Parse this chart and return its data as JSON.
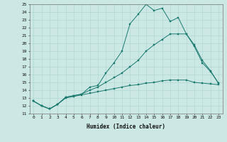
{
  "xlabel": "Humidex (Indice chaleur)",
  "background_color": "#cce8e5",
  "grid_color": "#aad4d0",
  "line_color": "#1a7a6e",
  "xlim": [
    -0.5,
    23.5
  ],
  "ylim": [
    11,
    25
  ],
  "xticks": [
    0,
    1,
    2,
    3,
    4,
    5,
    6,
    7,
    8,
    9,
    10,
    11,
    12,
    13,
    14,
    15,
    16,
    17,
    18,
    19,
    20,
    21,
    22,
    23
  ],
  "yticks": [
    11,
    12,
    13,
    14,
    15,
    16,
    17,
    18,
    19,
    20,
    21,
    22,
    23,
    24,
    25
  ],
  "line1_x": [
    0,
    1,
    2,
    3,
    4,
    5,
    6,
    7,
    8,
    9,
    10,
    11,
    12,
    13,
    14,
    15,
    16,
    17,
    18,
    19,
    20,
    21,
    22,
    23
  ],
  "line1_y": [
    12.6,
    12.0,
    11.6,
    12.2,
    13.1,
    13.3,
    13.5,
    14.4,
    14.6,
    16.2,
    17.5,
    19.0,
    22.5,
    23.7,
    25.0,
    24.2,
    24.5,
    22.8,
    23.3,
    21.2,
    19.6,
    17.5,
    16.4,
    14.9
  ],
  "line2_x": [
    0,
    1,
    2,
    3,
    4,
    5,
    6,
    7,
    8,
    9,
    10,
    11,
    12,
    13,
    14,
    15,
    16,
    17,
    18,
    19,
    20,
    21,
    22,
    23
  ],
  "line2_y": [
    12.6,
    12.0,
    11.6,
    12.2,
    13.1,
    13.3,
    13.5,
    14.0,
    14.4,
    15.0,
    15.6,
    16.2,
    17.0,
    17.8,
    19.0,
    19.8,
    20.5,
    21.2,
    21.2,
    21.2,
    19.8,
    17.8,
    16.5,
    14.9
  ],
  "line3_x": [
    0,
    1,
    2,
    3,
    4,
    5,
    6,
    7,
    8,
    9,
    10,
    11,
    12,
    13,
    14,
    15,
    16,
    17,
    18,
    19,
    20,
    21,
    22,
    23
  ],
  "line3_y": [
    12.6,
    12.0,
    11.6,
    12.2,
    13.0,
    13.2,
    13.4,
    13.6,
    13.8,
    14.0,
    14.2,
    14.4,
    14.6,
    14.7,
    14.9,
    15.0,
    15.2,
    15.3,
    15.3,
    15.3,
    15.0,
    14.9,
    14.8,
    14.7
  ],
  "tick_fontsize": 4.5,
  "xlabel_fontsize": 5.5
}
